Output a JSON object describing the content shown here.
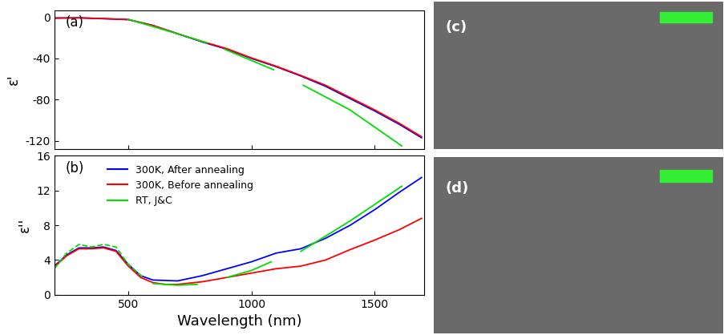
{
  "chart_data": [
    {
      "type": "line",
      "annotations": [
        "(a)"
      ],
      "y_label": "ε'",
      "xlim": [
        200,
        1700
      ],
      "xticks": [
        500,
        1000,
        1500
      ],
      "ylim": [
        -128,
        7
      ],
      "yticks": [
        0,
        -40,
        -80,
        -120
      ],
      "tick_labels": "y",
      "series": [
        {
          "color": "#0000ff",
          "line_style": "solid",
          "x": [
            200,
            300,
            400,
            500,
            600,
            700,
            800,
            900,
            1000,
            1100,
            1200,
            1300,
            1400,
            1500,
            1600,
            1690
          ],
          "values": [
            -0.8,
            -0.6,
            -1.4,
            -2.3,
            -8,
            -16,
            -24,
            -31,
            -40,
            -48,
            -57,
            -67,
            -79,
            -91,
            -104,
            -117
          ]
        },
        {
          "color": "#ff0000",
          "line_style": "solid",
          "x": [
            200,
            300,
            400,
            500,
            600,
            700,
            800,
            900,
            1000,
            1100,
            1200,
            1300,
            1400,
            1500,
            1600,
            1690
          ],
          "values": [
            -0.8,
            -0.5,
            -1.3,
            -2.2,
            -8,
            -16,
            -23.5,
            -30.5,
            -39.5,
            -47.5,
            -56.5,
            -66,
            -78,
            -90,
            -103,
            -116
          ]
        },
        {
          "color": "#00dd00",
          "line_style": "solid",
          "x": [
            500,
            600,
            700,
            820,
            850,
            890,
            1090,
            1150,
            1210,
            1400,
            1610
          ],
          "values": [
            -2,
            -9,
            -16,
            -25,
            null,
            -31,
            -51,
            null,
            -66,
            -90,
            -125
          ]
        }
      ]
    },
    {
      "type": "line",
      "annotations": [
        "(b)"
      ],
      "y_label": "ε''",
      "x_label": "Wavelength (nm)",
      "xlim": [
        200,
        1700
      ],
      "xticks": [
        500,
        1000,
        1500
      ],
      "ylim": [
        0,
        16
      ],
      "yticks": [
        0,
        4,
        8,
        12,
        16
      ],
      "legend": "upper left",
      "series": [
        {
          "name": "300K, After annealing",
          "color": "#0000ff",
          "line_style": "solid",
          "x": [
            200,
            250,
            300,
            350,
            400,
            450,
            500,
            550,
            600,
            700,
            800,
            900,
            1000,
            1100,
            1200,
            1300,
            1400,
            1500,
            1600,
            1690
          ],
          "values": [
            3.3,
            4.6,
            5.4,
            5.4,
            5.5,
            5.1,
            3.5,
            2.2,
            1.7,
            1.6,
            2.2,
            3.0,
            3.8,
            4.8,
            5.3,
            6.5,
            8.0,
            9.8,
            11.8,
            13.5
          ]
        },
        {
          "name": "300K, Before annealing",
          "color": "#ff0000",
          "line_style": "solid",
          "x": [
            200,
            250,
            300,
            350,
            400,
            450,
            500,
            550,
            600,
            650,
            700,
            800,
            900,
            1000,
            1100,
            1200,
            1300,
            1400,
            1500,
            1600,
            1690
          ],
          "values": [
            3.2,
            4.5,
            5.3,
            5.3,
            5.4,
            5.0,
            3.3,
            2.0,
            1.4,
            1.2,
            1.2,
            1.5,
            2.0,
            2.5,
            3.0,
            3.3,
            4.0,
            5.2,
            6.3,
            7.5,
            8.8
          ]
        },
        {
          "name": "RT, J&C",
          "color": "#00dd00",
          "line_style": "dashed",
          "x": [
            200,
            250,
            300,
            350,
            400,
            450,
            500,
            560
          ],
          "values": [
            3.0,
            4.8,
            5.8,
            5.5,
            5.8,
            5.5,
            3.5,
            2.0
          ]
        },
        {
          "color": "#00dd00",
          "line_style": "solid",
          "x": [
            600,
            700,
            780,
            840,
            900,
            1000,
            1080,
            1140,
            1200,
            1400,
            1610
          ],
          "values": [
            1.3,
            1.1,
            1.2,
            null,
            2.0,
            2.8,
            3.8,
            null,
            5.0,
            8.5,
            12.5
          ]
        }
      ]
    }
  ],
  "images": [
    {
      "label": "(c)",
      "scale_bar_color": "#33ee33"
    },
    {
      "label": "(d)",
      "scale_bar_color": "#33ee33"
    }
  ]
}
